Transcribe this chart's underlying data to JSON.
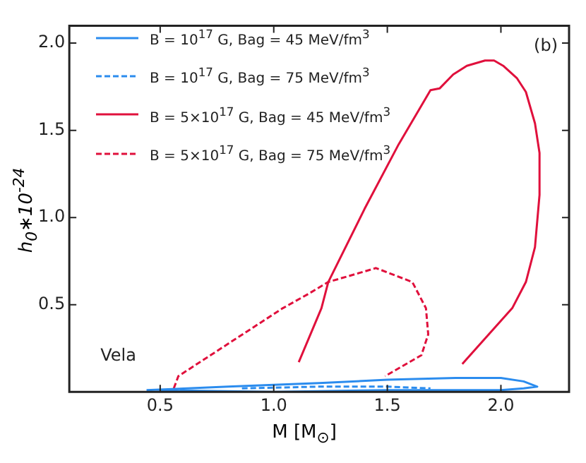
{
  "chart_data": {
    "type": "line",
    "xlabel": "M [M$_{⊙}$]",
    "ylabel": "h$_{0}$∗10$^{-24}$",
    "xlim": [
      0.1,
      2.3
    ],
    "ylim": [
      0,
      2.1
    ],
    "xticks": [
      0.5,
      {
        "value": 1,
        "label": "1.0"
      },
      1.5,
      {
        "value": 2,
        "label": "2.0"
      }
    ],
    "yticks": [
      0.5,
      {
        "value": 1,
        "label": "1.0"
      },
      1.5,
      {
        "value": 2,
        "label": "2.0"
      }
    ],
    "grid": false,
    "legend": "top left",
    "marker": "none",
    "annotations": [
      "(b)",
      "Vela"
    ],
    "series": [
      {
        "name": "B = 10$^{17}$ G, Bag = 45 MeV/fm$^{3}$",
        "color": "#2b8cee",
        "line_style": "solid",
        "x": [
          0.44,
          0.8,
          1.2,
          1.5,
          1.8,
          2.0,
          2.1,
          2.16,
          2.1,
          2.0,
          1.5,
          1.0,
          0.5
        ],
        "values": [
          0.01,
          0.03,
          0.05,
          0.07,
          0.08,
          0.08,
          0.06,
          0.03,
          0.02,
          0.01,
          0.01,
          0.0,
          0.01
        ]
      },
      {
        "name": "B = 10$^{17}$ G, Bag = 75 MeV/fm$^{3}$",
        "color": "#2b8cee",
        "line_style": "dashed",
        "x": [
          0.86,
          1.2,
          1.5,
          1.69
        ],
        "values": [
          0.02,
          0.03,
          0.03,
          0.02
        ]
      },
      {
        "name": "B = 5×10$^{17}$ G, Bag = 45 MeV/fm$^{3}$",
        "color": "#e0103c",
        "line_style": "solid",
        "x": [
          1.11,
          1.21,
          1.24,
          1.4,
          1.55,
          1.69,
          1.73,
          1.79,
          1.85,
          1.93,
          1.97,
          2.01,
          2.07,
          2.11,
          2.15,
          2.17,
          2.17,
          2.15,
          2.11,
          2.05,
          1.83
        ],
        "values": [
          0.17,
          0.48,
          0.63,
          1.05,
          1.42,
          1.73,
          1.74,
          1.82,
          1.87,
          1.9,
          1.9,
          1.87,
          1.8,
          1.72,
          1.54,
          1.37,
          1.13,
          0.83,
          0.63,
          0.48,
          0.16
        ]
      },
      {
        "name": "B = 5×10$^{17}$ G, Bag = 75 MeV/fm$^{3}$",
        "color": "#e0103c",
        "line_style": "dashed",
        "x": [
          0.56,
          0.58,
          1.04,
          1.15,
          1.24,
          1.45,
          1.61,
          1.67,
          1.68,
          1.65,
          1.49
        ],
        "values": [
          0.02,
          0.09,
          0.48,
          0.56,
          0.63,
          0.71,
          0.63,
          0.48,
          0.33,
          0.21,
          0.09
        ]
      }
    ]
  }
}
